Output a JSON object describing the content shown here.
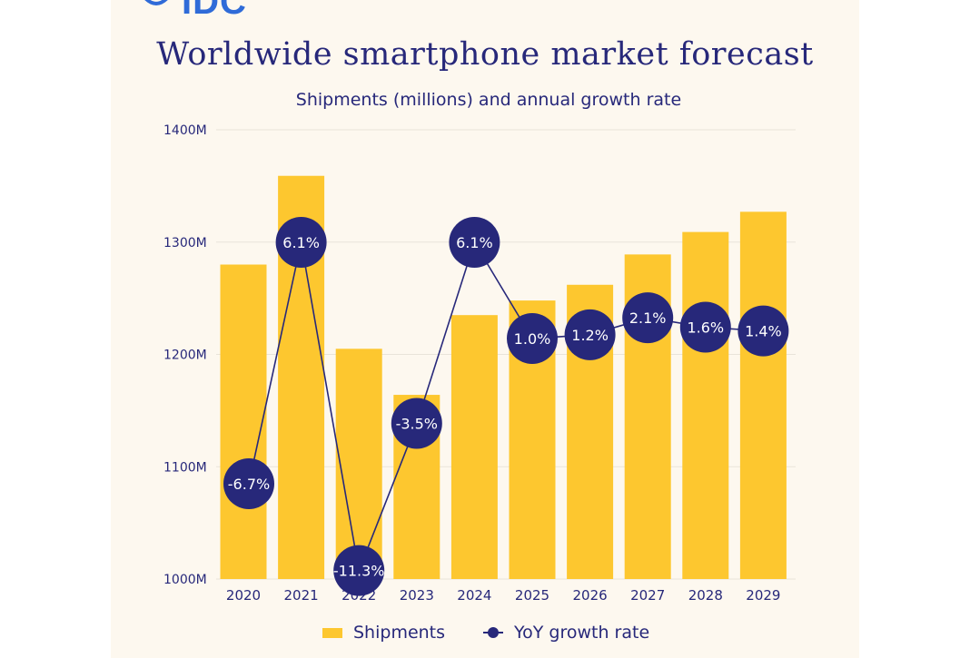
{
  "brand": {
    "logo_text": "IDC"
  },
  "chart_data": {
    "type": "bar",
    "title": "Worldwide smartphone market forecast",
    "subtitle": "Shipments (millions) and annual growth rate",
    "categories": [
      "2020",
      "2021",
      "2022",
      "2023",
      "2024",
      "2025",
      "2026",
      "2027",
      "2028",
      "2029"
    ],
    "ylim": [
      1000,
      1400
    ],
    "y_ticks": [
      1000,
      1100,
      1200,
      1300,
      1400
    ],
    "y_tick_labels": [
      "1000M",
      "1100M",
      "1200M",
      "1300M",
      "1400M"
    ],
    "series": [
      {
        "name": "Shipments",
        "type": "bar",
        "color": "#fdc72f",
        "values": [
          1280,
          1359,
          1205,
          1164,
          1235,
          1248,
          1262,
          1289,
          1309,
          1327
        ]
      },
      {
        "name": "YoY growth rate",
        "type": "line",
        "color": "#27287a",
        "values": [
          -6.7,
          6.1,
          -11.3,
          -3.5,
          6.1,
          1.0,
          1.2,
          2.1,
          1.6,
          1.4
        ],
        "labels": [
          "-6.7%",
          "6.1%",
          "-11.3%",
          "-3.5%",
          "6.1%",
          "1.0%",
          "1.2%",
          "2.1%",
          "1.6%",
          "1.4%"
        ]
      }
    ],
    "legend": [
      "Shipments",
      "YoY growth rate"
    ],
    "legend_position": "bottom",
    "grid": true
  }
}
